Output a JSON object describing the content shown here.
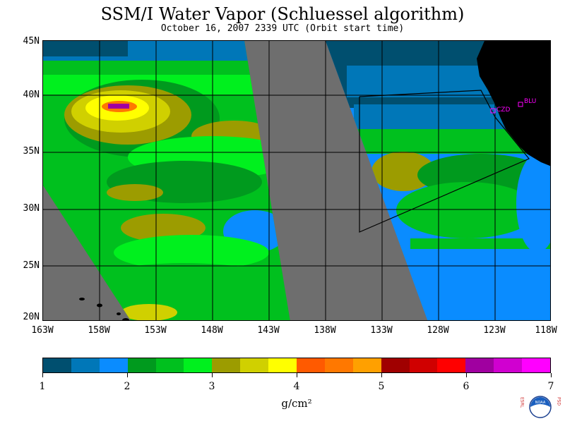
{
  "header": {
    "title": "SSM/I Water Vapor (Schluessel algorithm)",
    "subtitle": "October 16, 2007  2339 UTC  (Orbit start time)"
  },
  "map": {
    "lat_labels": [
      "45N",
      "40N",
      "35N",
      "30N",
      "25N",
      "20N"
    ],
    "lon_labels": [
      "163W",
      "158W",
      "153W",
      "148W",
      "143W",
      "138W",
      "133W",
      "128W",
      "123W",
      "118W"
    ],
    "stations": [
      {
        "id": "CZD",
        "color": "#ff00ff"
      },
      {
        "id": "BLU",
        "color": "#ff00ff"
      }
    ],
    "colors": {
      "no_data": "#6e6e6e",
      "land": "#000000",
      "grid": "#000000"
    }
  },
  "colorbar": {
    "colors": [
      "#004f6f",
      "#0077b8",
      "#0a8cff",
      "#009a1e",
      "#00c01e",
      "#00f01e",
      "#9c9c00",
      "#d0d000",
      "#ffff00",
      "#ff5a00",
      "#ff7800",
      "#ffa000",
      "#a00000",
      "#d00000",
      "#ff0000",
      "#a000a0",
      "#d000d0",
      "#ff00ff"
    ],
    "tick_labels": [
      "1",
      "2",
      "3",
      "4",
      "5",
      "6",
      "7"
    ],
    "units": "g/cm²"
  },
  "logo": {
    "left_text": "ESRL",
    "right_text": "PSD",
    "center_text": "NOAA"
  }
}
